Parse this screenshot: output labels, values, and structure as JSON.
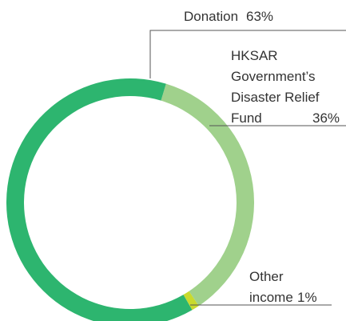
{
  "chart_data": {
    "type": "pie",
    "categories": [
      "Donation",
      "HKSAR Government’s Disaster Relief Fund",
      "Other income"
    ],
    "values": [
      63,
      36,
      1
    ],
    "value_labels": [
      "63%",
      "36%",
      "1%"
    ],
    "colors": [
      "#2db56f",
      "#a0d18c",
      "#c9da2e"
    ]
  }
}
